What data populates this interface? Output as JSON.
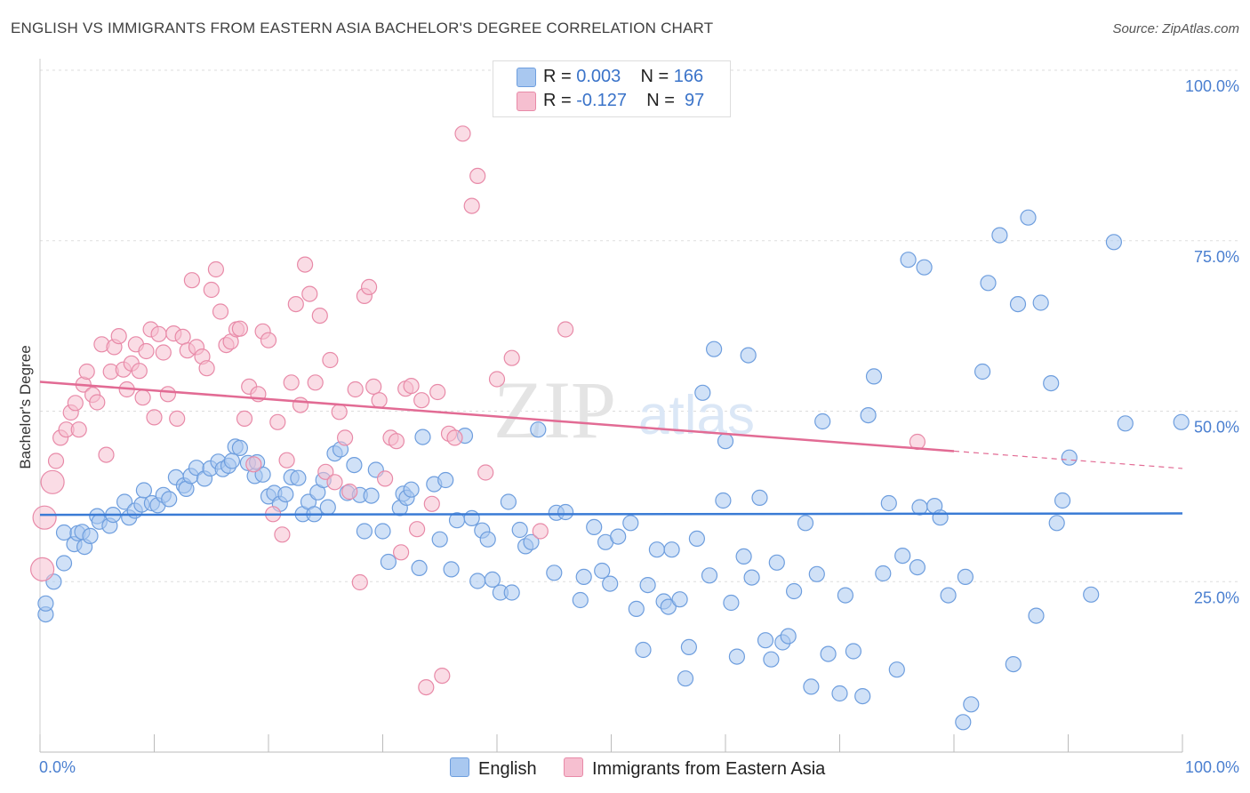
{
  "header": {
    "title": "ENGLISH VS IMMIGRANTS FROM EASTERN ASIA BACHELOR'S DEGREE CORRELATION CHART",
    "source": "Source: ZipAtlas.com"
  },
  "watermark": {
    "zip": "ZIP",
    "atlas": "atlas"
  },
  "legend": {
    "rows": [
      {
        "r_label": "R = ",
        "r_value": "0.003",
        "n_label": "N = ",
        "n_value": "166",
        "color": "#a9c8f0"
      },
      {
        "r_label": "R = ",
        "r_value": "-0.127",
        "n_label": "N = ",
        "n_value": " 97",
        "color": "#f4b6c8"
      }
    ]
  },
  "bottom_legend": [
    {
      "label": "English",
      "color": "#a9c8f0"
    },
    {
      "label": "Immigrants from Eastern Asia",
      "color": "#f4b6c8"
    }
  ],
  "colors": {
    "english_fill": "#a9c8f0",
    "english_stroke": "#6e9ede",
    "english_line": "#3a7bd5",
    "asia_fill": "#f6bfd0",
    "asia_stroke": "#e88aa8",
    "asia_line": "#e26b94",
    "grid": "#dddddd",
    "tick_label": "#4a7fd0"
  },
  "chart_data": {
    "type": "scatter",
    "title": "ENGLISH VS IMMIGRANTS FROM EASTERN ASIA BACHELOR'S DEGREE CORRELATION CHART",
    "xlabel": "",
    "ylabel": "Bachelor's Degree",
    "xlim": [
      0,
      100
    ],
    "ylim": [
      0,
      100
    ],
    "x_tick_labels": [
      "0.0%",
      "100.0%"
    ],
    "y_ticks": [
      {
        "value": 100,
        "label": "100.0%"
      },
      {
        "value": 75,
        "label": "75.0%"
      },
      {
        "value": 50,
        "label": "50.0%"
      },
      {
        "value": 25,
        "label": "25.0%"
      }
    ],
    "grid": true,
    "series": [
      {
        "name": "English",
        "R": 0.003,
        "N": 166,
        "trend": {
          "x": [
            0,
            100
          ],
          "y": [
            34.8,
            35.0
          ],
          "dashed_after": null
        },
        "points": [
          [
            0.5,
            20.2
          ],
          [
            0.5,
            21.8
          ],
          [
            1.2,
            25.0
          ],
          [
            2.1,
            27.7
          ],
          [
            2.1,
            32.2
          ],
          [
            3.0,
            30.5
          ],
          [
            3.3,
            32.1
          ],
          [
            3.7,
            32.3
          ],
          [
            3.9,
            30.1
          ],
          [
            4.4,
            31.7
          ],
          [
            5.0,
            34.6
          ],
          [
            5.2,
            33.8
          ],
          [
            6.1,
            33.2
          ],
          [
            6.4,
            34.8
          ],
          [
            7.4,
            36.7
          ],
          [
            7.8,
            34.4
          ],
          [
            8.3,
            35.4
          ],
          [
            8.9,
            36.3
          ],
          [
            9.1,
            38.4
          ],
          [
            9.8,
            36.5
          ],
          [
            10.3,
            36.2
          ],
          [
            10.8,
            37.7
          ],
          [
            11.3,
            37.1
          ],
          [
            11.9,
            40.3
          ],
          [
            12.6,
            39.1
          ],
          [
            12.8,
            38.6
          ],
          [
            13.2,
            40.5
          ],
          [
            13.7,
            41.7
          ],
          [
            14.4,
            40.1
          ],
          [
            14.9,
            41.6
          ],
          [
            15.6,
            42.6
          ],
          [
            16.0,
            41.5
          ],
          [
            16.5,
            42.0
          ],
          [
            16.8,
            42.7
          ],
          [
            17.1,
            44.8
          ],
          [
            17.5,
            44.6
          ],
          [
            18.2,
            42.4
          ],
          [
            18.8,
            40.5
          ],
          [
            19.0,
            42.5
          ],
          [
            19.5,
            40.7
          ],
          [
            20.0,
            37.5
          ],
          [
            20.5,
            38.0
          ],
          [
            21.0,
            36.4
          ],
          [
            21.5,
            37.8
          ],
          [
            22.0,
            40.3
          ],
          [
            22.6,
            40.2
          ],
          [
            23.0,
            34.9
          ],
          [
            23.5,
            36.7
          ],
          [
            24.0,
            34.9
          ],
          [
            24.3,
            38.1
          ],
          [
            24.8,
            39.9
          ],
          [
            25.2,
            35.9
          ],
          [
            25.8,
            43.8
          ],
          [
            26.3,
            44.4
          ],
          [
            26.9,
            38.0
          ],
          [
            27.5,
            42.1
          ],
          [
            28.0,
            37.7
          ],
          [
            28.4,
            32.4
          ],
          [
            29.0,
            37.6
          ],
          [
            29.4,
            41.4
          ],
          [
            30.0,
            32.4
          ],
          [
            30.5,
            27.9
          ],
          [
            31.5,
            35.8
          ],
          [
            31.8,
            37.9
          ],
          [
            32.1,
            37.3
          ],
          [
            32.5,
            38.5
          ],
          [
            33.2,
            27.0
          ],
          [
            33.5,
            46.2
          ],
          [
            34.5,
            39.3
          ],
          [
            35.0,
            31.2
          ],
          [
            35.5,
            39.9
          ],
          [
            36.0,
            26.8
          ],
          [
            36.5,
            34.0
          ],
          [
            37.2,
            46.4
          ],
          [
            37.8,
            34.3
          ],
          [
            38.3,
            25.1
          ],
          [
            38.7,
            32.5
          ],
          [
            39.2,
            31.2
          ],
          [
            39.6,
            25.3
          ],
          [
            40.3,
            23.4
          ],
          [
            41.0,
            36.7
          ],
          [
            41.3,
            23.4
          ],
          [
            42.0,
            32.6
          ],
          [
            42.5,
            30.2
          ],
          [
            43.0,
            30.8
          ],
          [
            43.6,
            47.3
          ],
          [
            45.0,
            26.3
          ],
          [
            45.2,
            35.1
          ],
          [
            46.0,
            35.2
          ],
          [
            47.3,
            22.3
          ],
          [
            47.6,
            25.7
          ],
          [
            48.5,
            33.0
          ],
          [
            49.2,
            26.6
          ],
          [
            49.5,
            30.8
          ],
          [
            49.9,
            24.7
          ],
          [
            50.6,
            31.6
          ],
          [
            51.7,
            33.6
          ],
          [
            52.2,
            21.0
          ],
          [
            52.8,
            15.0
          ],
          [
            53.2,
            24.5
          ],
          [
            54.0,
            29.7
          ],
          [
            54.6,
            22.1
          ],
          [
            55.0,
            21.3
          ],
          [
            55.3,
            29.7
          ],
          [
            56.0,
            22.4
          ],
          [
            56.5,
            10.8
          ],
          [
            56.8,
            15.4
          ],
          [
            57.5,
            31.3
          ],
          [
            58.0,
            52.7
          ],
          [
            58.6,
            25.9
          ],
          [
            59.0,
            59.1
          ],
          [
            59.8,
            36.9
          ],
          [
            60.0,
            45.6
          ],
          [
            60.5,
            21.9
          ],
          [
            61.0,
            14.0
          ],
          [
            61.6,
            28.7
          ],
          [
            62.0,
            58.2
          ],
          [
            62.3,
            25.6
          ],
          [
            63.0,
            37.3
          ],
          [
            63.5,
            16.4
          ],
          [
            64.0,
            13.6
          ],
          [
            64.5,
            27.8
          ],
          [
            65.0,
            16.1
          ],
          [
            65.5,
            17.0
          ],
          [
            66.0,
            23.6
          ],
          [
            67.0,
            33.6
          ],
          [
            67.5,
            9.6
          ],
          [
            68.0,
            26.1
          ],
          [
            68.5,
            48.5
          ],
          [
            69.0,
            14.4
          ],
          [
            70.0,
            8.6
          ],
          [
            70.5,
            23.0
          ],
          [
            71.2,
            14.8
          ],
          [
            72.0,
            8.2
          ],
          [
            72.5,
            49.4
          ],
          [
            73.0,
            55.1
          ],
          [
            73.8,
            26.2
          ],
          [
            74.3,
            36.5
          ],
          [
            75.0,
            12.1
          ],
          [
            75.5,
            28.8
          ],
          [
            76.0,
            72.2
          ],
          [
            76.8,
            27.1
          ],
          [
            77.0,
            35.9
          ],
          [
            77.4,
            71.1
          ],
          [
            78.3,
            36.1
          ],
          [
            78.8,
            34.4
          ],
          [
            79.5,
            23.0
          ],
          [
            80.8,
            4.4
          ],
          [
            81.0,
            25.7
          ],
          [
            81.5,
            7.0
          ],
          [
            82.5,
            55.8
          ],
          [
            83.0,
            68.8
          ],
          [
            84.0,
            75.8
          ],
          [
            85.2,
            12.9
          ],
          [
            85.6,
            65.7
          ],
          [
            86.5,
            78.4
          ],
          [
            87.2,
            20.0
          ],
          [
            87.6,
            65.9
          ],
          [
            88.5,
            54.1
          ],
          [
            89.0,
            33.6
          ],
          [
            89.5,
            36.9
          ],
          [
            90.1,
            43.2
          ],
          [
            92.0,
            23.1
          ],
          [
            94.0,
            74.8
          ],
          [
            95.0,
            48.2
          ],
          [
            99.9,
            48.4
          ]
        ]
      },
      {
        "name": "Immigrants from Eastern Asia",
        "R": -0.127,
        "N": 97,
        "trend": {
          "x": [
            0,
            100
          ],
          "y": [
            54.3,
            41.6
          ],
          "dashed_after": 80
        },
        "points": [
          [
            0.2,
            26.8
          ],
          [
            0.4,
            34.4
          ],
          [
            1.1,
            39.6
          ],
          [
            1.4,
            42.7
          ],
          [
            1.8,
            46.1
          ],
          [
            2.3,
            47.3
          ],
          [
            2.7,
            49.8
          ],
          [
            3.1,
            51.2
          ],
          [
            3.4,
            47.3
          ],
          [
            3.8,
            53.9
          ],
          [
            4.1,
            55.8
          ],
          [
            4.6,
            52.4
          ],
          [
            5.0,
            51.3
          ],
          [
            5.4,
            59.8
          ],
          [
            5.8,
            43.6
          ],
          [
            6.2,
            55.8
          ],
          [
            6.5,
            59.4
          ],
          [
            6.9,
            61.0
          ],
          [
            7.3,
            56.1
          ],
          [
            7.6,
            53.2
          ],
          [
            8.0,
            57.0
          ],
          [
            8.4,
            59.8
          ],
          [
            8.7,
            55.9
          ],
          [
            9.0,
            52.0
          ],
          [
            9.3,
            58.8
          ],
          [
            9.7,
            62.0
          ],
          [
            10.0,
            49.1
          ],
          [
            10.4,
            61.3
          ],
          [
            10.8,
            58.6
          ],
          [
            11.2,
            52.5
          ],
          [
            11.7,
            61.4
          ],
          [
            12.0,
            48.9
          ],
          [
            12.5,
            60.9
          ],
          [
            12.9,
            58.9
          ],
          [
            13.3,
            69.2
          ],
          [
            13.7,
            59.4
          ],
          [
            14.2,
            58.0
          ],
          [
            14.6,
            56.3
          ],
          [
            15.0,
            67.8
          ],
          [
            15.4,
            70.8
          ],
          [
            15.8,
            64.6
          ],
          [
            16.3,
            59.7
          ],
          [
            16.7,
            60.2
          ],
          [
            17.2,
            62.0
          ],
          [
            17.5,
            62.1
          ],
          [
            17.9,
            48.9
          ],
          [
            18.3,
            53.6
          ],
          [
            18.7,
            42.2
          ],
          [
            19.1,
            52.5
          ],
          [
            19.5,
            61.7
          ],
          [
            20.0,
            60.4
          ],
          [
            20.4,
            34.9
          ],
          [
            20.8,
            48.4
          ],
          [
            21.2,
            31.9
          ],
          [
            21.6,
            42.8
          ],
          [
            22.0,
            54.2
          ],
          [
            22.4,
            65.7
          ],
          [
            22.8,
            50.9
          ],
          [
            23.2,
            71.5
          ],
          [
            23.6,
            67.2
          ],
          [
            24.1,
            54.2
          ],
          [
            24.5,
            64.0
          ],
          [
            25.0,
            41.1
          ],
          [
            25.4,
            57.5
          ],
          [
            25.8,
            39.6
          ],
          [
            26.2,
            49.9
          ],
          [
            26.7,
            46.1
          ],
          [
            27.1,
            38.2
          ],
          [
            27.6,
            53.2
          ],
          [
            28.0,
            24.9
          ],
          [
            28.4,
            66.9
          ],
          [
            28.8,
            68.2
          ],
          [
            29.2,
            53.6
          ],
          [
            29.7,
            51.6
          ],
          [
            30.2,
            40.1
          ],
          [
            30.7,
            46.1
          ],
          [
            31.2,
            45.6
          ],
          [
            31.6,
            29.3
          ],
          [
            32.0,
            53.3
          ],
          [
            32.5,
            53.7
          ],
          [
            33.0,
            32.7
          ],
          [
            33.4,
            51.6
          ],
          [
            33.8,
            9.5
          ],
          [
            34.3,
            36.4
          ],
          [
            34.8,
            52.8
          ],
          [
            35.2,
            11.2
          ],
          [
            35.8,
            46.7
          ],
          [
            36.3,
            46.1
          ],
          [
            37.0,
            90.7
          ],
          [
            37.8,
            80.1
          ],
          [
            38.3,
            84.5
          ],
          [
            39.0,
            41.0
          ],
          [
            40.0,
            54.7
          ],
          [
            41.3,
            57.8
          ],
          [
            43.8,
            32.4
          ],
          [
            46.0,
            62.0
          ],
          [
            76.8,
            45.5
          ]
        ]
      }
    ]
  }
}
